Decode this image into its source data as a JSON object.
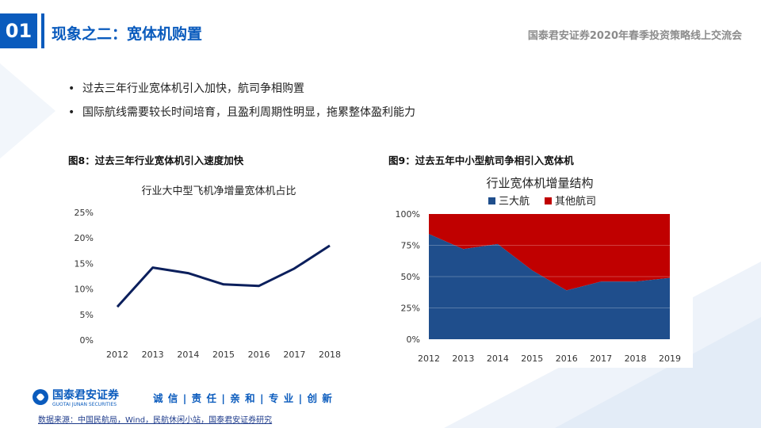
{
  "header": {
    "section_number": "01",
    "title": "现象之二：宽体机购置",
    "event_title": "国泰君安证券2020年春季投资策略线上交流会"
  },
  "bullets": [
    "过去三年行业宽体机引入加快，航司争相购置",
    "国际航线需要较长时间培育，且盈利周期性明显，拖累整体盈利能力"
  ],
  "figure8": {
    "caption": "图8：过去三年行业宽体机引入速度加快"
  },
  "figure9": {
    "caption": "图9：过去五年中小型航司争相引入宽体机"
  },
  "chart_data": [
    {
      "type": "line",
      "title": "行业大中型飞机净增量宽体机占比",
      "x": [
        "2012",
        "2013",
        "2014",
        "2015",
        "2016",
        "2017",
        "2018"
      ],
      "series": [
        {
          "values": [
            6.5,
            14.2,
            13.1,
            10.9,
            10.6,
            14.0,
            18.5
          ],
          "color": "#0b1f5c"
        }
      ],
      "y_ticks": [
        "0%",
        "5%",
        "10%",
        "15%",
        "20%",
        "25%"
      ],
      "ylim": [
        0,
        25
      ],
      "grid": false
    },
    {
      "type": "area",
      "title": "行业宽体机增量结构",
      "stacked_percent": true,
      "x": [
        "2012",
        "2013",
        "2014",
        "2015",
        "2016",
        "2017",
        "2018",
        "2019"
      ],
      "series": [
        {
          "name": "三大航",
          "values": [
            84,
            72,
            76,
            55,
            39,
            46,
            46,
            49
          ],
          "color": "#1f4e8c"
        },
        {
          "name": "其他航司",
          "values": [
            16,
            28,
            24,
            45,
            61,
            54,
            54,
            51
          ],
          "color": "#c00000"
        }
      ],
      "y_ticks": [
        "0%",
        "25%",
        "50%",
        "75%",
        "100%"
      ],
      "ylim": [
        0,
        100
      ],
      "legend": "top"
    }
  ],
  "footer": {
    "logo_text": "国泰君安证券",
    "logo_subtext": "GUOTAI JUNAN SECURITIES",
    "slogan": "诚 信 | 责 任 | 亲 和 | 专 业 | 创 新",
    "source": "数据来源：中国民航局，Wind，民航休闲小站，国泰君安证券研究"
  },
  "colors": {
    "brand": "#0a5bbd"
  }
}
